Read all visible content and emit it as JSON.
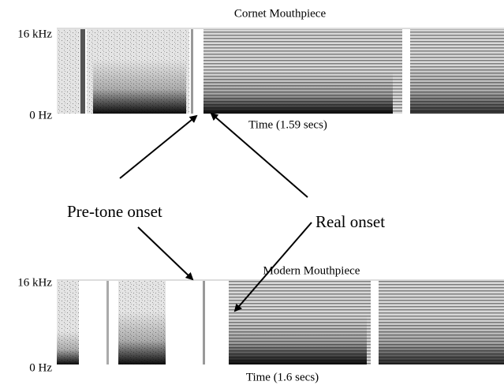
{
  "panels": [
    {
      "title": "Cornet Mouthpiece",
      "y_top": "16 kHz",
      "y_bottom": "0 Hz",
      "time": "Time (1.59 secs)"
    },
    {
      "title": "Modern Mouthpiece",
      "y_top": "16 kHz",
      "y_bottom": "0 Hz",
      "time": "Time (1.6 secs)"
    }
  ],
  "annotations": {
    "pre_tone": "Pre-tone onset",
    "real": "Real onset"
  }
}
